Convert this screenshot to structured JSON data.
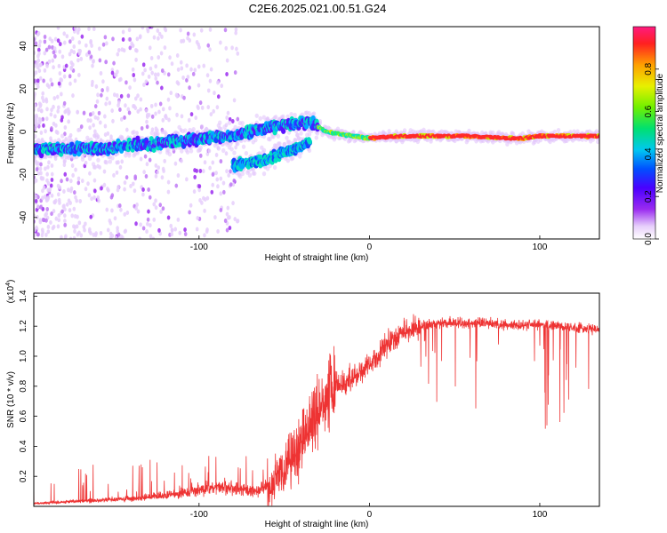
{
  "title": "C2E6.2025.021.00.51.G24",
  "chart_data": [
    {
      "type": "heatmap",
      "xlabel": "Height of straight line (km)",
      "ylabel": "Frequency (Hz)",
      "xlim": [
        -197,
        135
      ],
      "ylim": [
        -50,
        49
      ],
      "x_ticks": [
        -100,
        0,
        100
      ],
      "x_tick_labels": [
        "-100",
        "0",
        "100"
      ],
      "y_ticks": [
        40,
        20,
        0,
        -20,
        -40
      ],
      "y_tick_labels": [
        "40",
        "20",
        "0",
        "-20",
        "-40"
      ],
      "colorbar": {
        "label": "Normalized spectral amplitude",
        "range": [
          0,
          1
        ],
        "ticks": [
          0.0,
          0.2,
          0.4,
          0.6,
          0.8
        ],
        "tick_labels": [
          "0.0",
          "0.2",
          "0.4",
          "0.6",
          "0.8"
        ]
      },
      "ridges": [
        {
          "x": [
            -197,
            -160,
            -120,
            -80,
            -60,
            -40,
            -35,
            -25,
            -10,
            0,
            20,
            60,
            80,
            90,
            100,
            135
          ],
          "y": [
            -8,
            -8,
            -5,
            -2,
            2,
            4,
            5,
            0,
            -2,
            -3,
            -2,
            -2,
            -3,
            -3,
            -2,
            -2
          ]
        },
        {
          "x": [
            -80,
            -60,
            -45,
            -35
          ],
          "y": [
            -16,
            -13,
            -8,
            -5
          ]
        }
      ]
    },
    {
      "type": "line",
      "xlabel": "Height of straight line (km)",
      "ylabel": "SNR (10 * v/v)",
      "y_multiplier": "(x10",
      "y_multiplier_exp": "4",
      "y_multiplier_close": ")",
      "xlim": [
        -197,
        135
      ],
      "ylim": [
        0,
        1.42
      ],
      "x_ticks": [
        -100,
        0,
        100
      ],
      "x_tick_labels": [
        "-100",
        "0",
        "100"
      ],
      "y_ticks": [
        0.2,
        0.4,
        0.6,
        0.8,
        1.0,
        1.2,
        1.4
      ],
      "y_tick_labels": [
        "0.2",
        "0.4",
        "0.6",
        "0.8",
        "1.0",
        "1.2",
        "1.4"
      ],
      "series": [
        {
          "color": "#ee3333",
          "x": [
            -197,
            -180,
            -160,
            -140,
            -120,
            -110,
            -100,
            -90,
            -80,
            -70,
            -60,
            -50,
            -45,
            -40,
            -35,
            -30,
            -25,
            -22,
            -20,
            -15,
            -10,
            -5,
            0,
            5,
            10,
            20,
            30,
            40,
            50,
            60,
            70,
            80,
            90,
            100,
            110,
            120,
            135
          ],
          "y": [
            0.02,
            0.03,
            0.04,
            0.05,
            0.07,
            0.09,
            0.11,
            0.13,
            0.12,
            0.1,
            0.13,
            0.22,
            0.3,
            0.42,
            0.55,
            0.6,
            0.72,
            0.78,
            0.8,
            0.82,
            0.86,
            0.9,
            0.95,
            1.0,
            1.08,
            1.16,
            1.2,
            1.22,
            1.22,
            1.22,
            1.22,
            1.21,
            1.21,
            1.21,
            1.2,
            1.19,
            1.18
          ]
        }
      ]
    }
  ]
}
